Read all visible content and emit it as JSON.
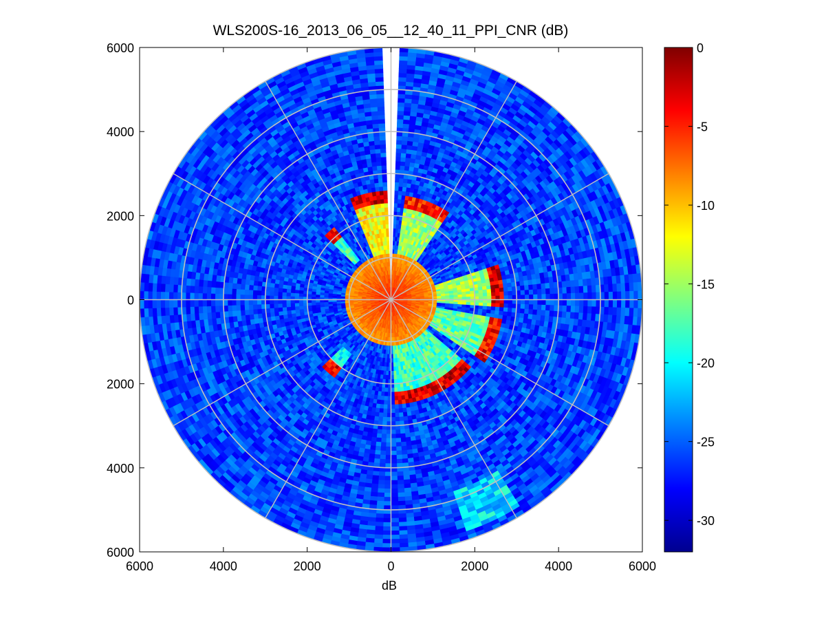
{
  "chart_data": {
    "type": "heatmap",
    "subtype": "polar-ppi",
    "title": "WLS200S-16_2013_06_05__12_40_11_PPI_CNR (dB)",
    "xlabel": "dB",
    "ylabel": "",
    "xlim": [
      -6000,
      6000
    ],
    "ylim": [
      -6000,
      6000
    ],
    "x_tick_labels": [
      "6000",
      "4000",
      "2000",
      "0",
      "2000",
      "4000",
      "6000"
    ],
    "y_tick_labels": [
      "6000",
      "4000",
      "2000",
      "0",
      "2000",
      "4000",
      "6000"
    ],
    "max_range_m": 6000,
    "range_rings_m": [
      1000,
      2000,
      3000,
      4000,
      5000,
      6000
    ],
    "azimuth_spokes_deg": [
      0,
      30,
      60,
      90,
      120,
      150,
      180,
      210,
      240,
      270,
      300,
      330
    ],
    "grid": true,
    "colormap": "jet",
    "colorbar": {
      "range": [
        -32,
        0
      ],
      "tick_values": [
        0,
        -5,
        -10,
        -15,
        -20,
        -25,
        -30
      ],
      "tick_labels": [
        "0",
        "-5",
        "-10",
        "-15",
        "-20",
        "-25",
        "-30"
      ]
    },
    "background_cnr_db": -26,
    "near_field": {
      "radius_m": 1100,
      "cnr_center_db": -5,
      "cnr_edge_db": -9
    },
    "missing_sector_deg": [
      -2,
      2
    ],
    "high_return_sectors": [
      {
        "az_from_deg": -22,
        "az_to_deg": -3,
        "r_from_m": 1100,
        "r_to_m": 2550,
        "cnr_db": -12,
        "tip_cnr_db": -3
      },
      {
        "az_from_deg": 8,
        "az_to_deg": 34,
        "r_from_m": 1100,
        "r_to_m": 2450,
        "cnr_db": -15,
        "tip_cnr_db": -5
      },
      {
        "az_from_deg": -46,
        "az_to_deg": -38,
        "r_from_m": 1200,
        "r_to_m": 2150,
        "cnr_db": -18,
        "tip_cnr_db": -4
      },
      {
        "az_from_deg": 72,
        "az_to_deg": 94,
        "r_from_m": 1100,
        "r_to_m": 2650,
        "cnr_db": -15,
        "tip_cnr_db": -3
      },
      {
        "az_from_deg": 100,
        "az_to_deg": 124,
        "r_from_m": 1100,
        "r_to_m": 2700,
        "cnr_db": -17,
        "tip_cnr_db": -4
      },
      {
        "az_from_deg": 130,
        "az_to_deg": 178,
        "r_from_m": 1100,
        "r_to_m": 2500,
        "cnr_db": -18,
        "tip_cnr_db": -3
      },
      {
        "az_from_deg": 216,
        "az_to_deg": 226,
        "r_from_m": 1600,
        "r_to_m": 2300,
        "cnr_db": -20,
        "tip_cnr_db": -4
      },
      {
        "az_from_deg": 148,
        "az_to_deg": 162,
        "r_from_m": 4800,
        "r_to_m": 5800,
        "cnr_db": -21,
        "tip_cnr_db": -21
      }
    ]
  }
}
